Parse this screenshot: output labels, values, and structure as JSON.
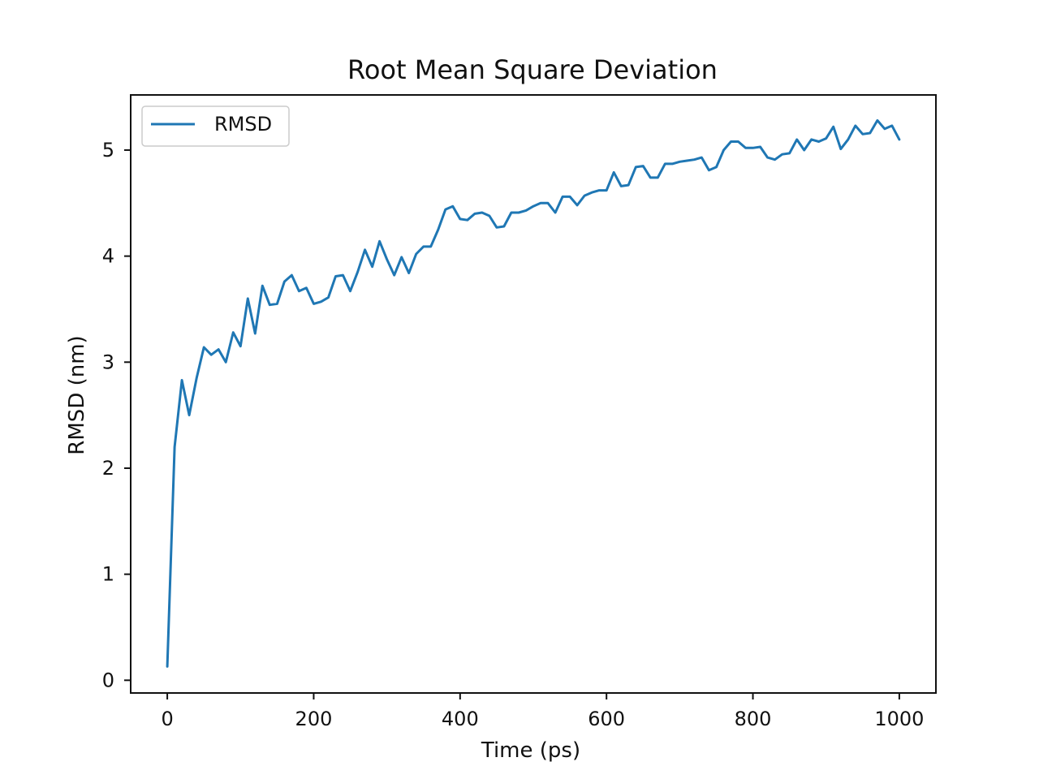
{
  "chart_data": {
    "type": "line",
    "title": "Root Mean Square Deviation",
    "xlabel": "Time (ps)",
    "ylabel": "RMSD (nm)",
    "xlim": [
      -50,
      1050
    ],
    "ylim": [
      -0.12,
      5.52
    ],
    "xticks": [
      0,
      200,
      400,
      600,
      800,
      1000
    ],
    "yticks": [
      0,
      1,
      2,
      3,
      4,
      5
    ],
    "grid": false,
    "legend_position": "top-left",
    "series": [
      {
        "name": "RMSD",
        "color": "#1f77b4",
        "x": [
          0,
          10,
          20,
          30,
          40,
          50,
          60,
          70,
          80,
          90,
          100,
          110,
          120,
          130,
          140,
          150,
          160,
          170,
          180,
          190,
          200,
          210,
          220,
          230,
          240,
          250,
          260,
          270,
          280,
          290,
          300,
          310,
          320,
          330,
          340,
          350,
          360,
          370,
          380,
          390,
          400,
          410,
          420,
          430,
          440,
          450,
          460,
          470,
          480,
          490,
          500,
          510,
          520,
          530,
          540,
          550,
          560,
          570,
          580,
          590,
          600,
          610,
          620,
          630,
          640,
          650,
          660,
          670,
          680,
          690,
          700,
          710,
          720,
          730,
          740,
          750,
          760,
          770,
          780,
          790,
          800,
          810,
          820,
          830,
          840,
          850,
          860,
          870,
          880,
          890,
          900,
          910,
          920,
          930,
          940,
          950,
          960,
          970,
          980,
          990,
          1000
        ],
        "y": [
          0.13,
          2.2,
          2.83,
          2.5,
          2.85,
          3.14,
          3.07,
          3.12,
          3.0,
          3.28,
          3.15,
          3.6,
          3.27,
          3.72,
          3.54,
          3.55,
          3.76,
          3.82,
          3.67,
          3.7,
          3.55,
          3.57,
          3.61,
          3.81,
          3.82,
          3.67,
          3.85,
          4.06,
          3.9,
          4.14,
          3.97,
          3.82,
          3.99,
          3.84,
          4.02,
          4.09,
          4.09,
          4.25,
          4.44,
          4.47,
          4.35,
          4.34,
          4.4,
          4.41,
          4.38,
          4.27,
          4.28,
          4.41,
          4.41,
          4.43,
          4.47,
          4.5,
          4.5,
          4.41,
          4.56,
          4.56,
          4.48,
          4.57,
          4.6,
          4.62,
          4.62,
          4.79,
          4.66,
          4.67,
          4.84,
          4.85,
          4.74,
          4.74,
          4.87,
          4.87,
          4.89,
          4.9,
          4.91,
          4.93,
          4.81,
          4.84,
          5.0,
          5.08,
          5.08,
          5.02,
          5.02,
          5.03,
          4.93,
          4.91,
          4.96,
          4.97,
          5.1,
          5.0,
          5.1,
          5.08,
          5.11,
          5.22,
          5.01,
          5.1,
          5.23,
          5.15,
          5.16,
          5.28,
          5.2,
          5.23,
          5.1
        ]
      }
    ]
  }
}
